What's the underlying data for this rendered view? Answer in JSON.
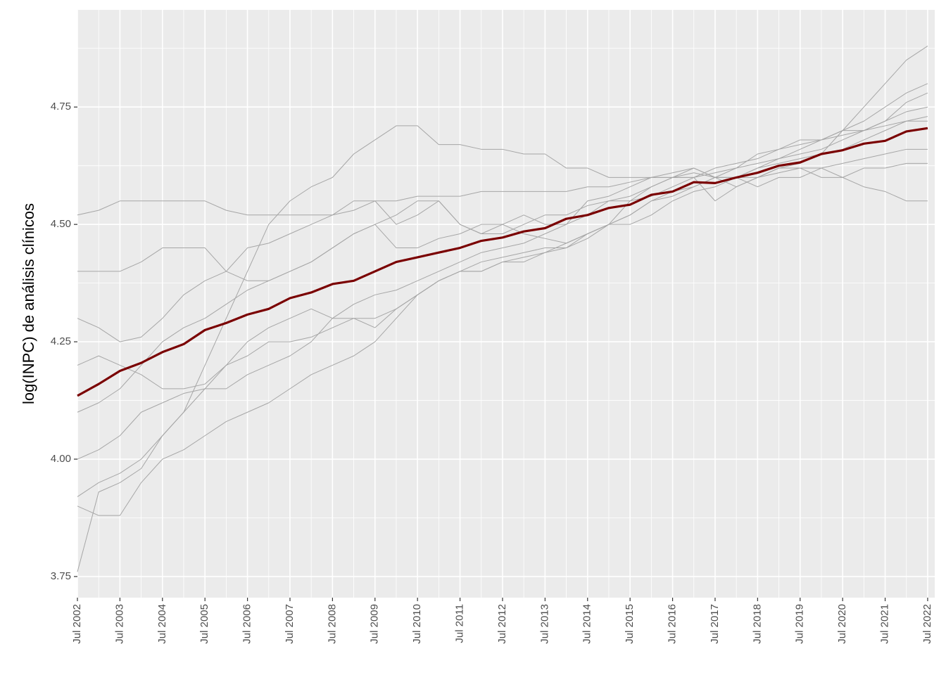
{
  "chart_data": {
    "type": "line",
    "y_label": "log(INPC) de análisis clínicos",
    "x": [
      "2002-07",
      "2003-01",
      "2003-07",
      "2004-01",
      "2004-07",
      "2005-01",
      "2005-07",
      "2006-01",
      "2006-07",
      "2007-01",
      "2007-07",
      "2008-01",
      "2008-07",
      "2009-01",
      "2009-07",
      "2010-01",
      "2010-07",
      "2011-01",
      "2011-07",
      "2012-01",
      "2012-07",
      "2013-01",
      "2013-07",
      "2014-01",
      "2014-07",
      "2015-01",
      "2015-07",
      "2016-01",
      "2016-07",
      "2017-01",
      "2017-07",
      "2018-01",
      "2018-07",
      "2019-01",
      "2019-07",
      "2020-01",
      "2020-07",
      "2021-01",
      "2021-07",
      "2022-01",
      "2022-07"
    ],
    "series": [
      {
        "color": "#a6a6a6",
        "line_width": 1,
        "values": [
          4.52,
          4.53,
          4.55,
          4.55,
          4.55,
          4.55,
          4.55,
          4.53,
          4.52,
          4.52,
          4.52,
          4.52,
          4.52,
          4.53,
          4.55,
          4.55,
          4.56,
          4.56,
          4.56,
          4.57,
          4.57,
          4.57,
          4.57,
          4.57,
          4.58,
          4.58,
          4.59,
          4.6,
          4.6,
          4.61,
          4.6,
          4.6,
          4.62,
          4.63,
          4.64,
          4.65,
          4.66,
          4.68,
          4.7,
          4.72,
          4.73
        ]
      },
      {
        "color": "#a6a6a6",
        "line_width": 1,
        "values": [
          3.76,
          3.93,
          3.95,
          3.98,
          4.05,
          4.1,
          4.15,
          4.15,
          4.18,
          4.2,
          4.22,
          4.25,
          4.3,
          4.33,
          4.35,
          4.36,
          4.38,
          4.4,
          4.42,
          4.44,
          4.45,
          4.46,
          4.48,
          4.5,
          4.52,
          4.55,
          4.55,
          4.56,
          4.58,
          4.6,
          4.55,
          4.58,
          4.6,
          4.62,
          4.63,
          4.65,
          4.7,
          4.75,
          4.8,
          4.85,
          4.88
        ]
      },
      {
        "color": "#a6a6a6",
        "line_width": 1,
        "values": [
          3.92,
          3.95,
          3.97,
          4.0,
          4.05,
          4.1,
          4.2,
          4.3,
          4.4,
          4.5,
          4.55,
          4.58,
          4.6,
          4.65,
          4.68,
          4.71,
          4.71,
          4.67,
          4.67,
          4.66,
          4.66,
          4.65,
          4.65,
          4.62,
          4.62,
          4.6,
          4.6,
          4.6,
          4.61,
          4.62,
          4.6,
          4.62,
          4.63,
          4.64,
          4.66,
          4.68,
          4.7,
          4.72,
          4.75,
          4.78,
          4.8
        ]
      },
      {
        "color": "#a6a6a6",
        "line_width": 1,
        "values": [
          4.3,
          4.28,
          4.25,
          4.26,
          4.3,
          4.35,
          4.38,
          4.4,
          4.45,
          4.46,
          4.48,
          4.5,
          4.52,
          4.55,
          4.55,
          4.5,
          4.52,
          4.55,
          4.5,
          4.48,
          4.5,
          4.52,
          4.5,
          4.5,
          4.55,
          4.56,
          4.58,
          4.6,
          4.6,
          4.62,
          4.6,
          4.58,
          4.6,
          4.62,
          4.62,
          4.6,
          4.6,
          4.62,
          4.62,
          4.63,
          4.63
        ]
      },
      {
        "color": "#a6a6a6",
        "line_width": 1,
        "values": [
          4.0,
          4.02,
          4.05,
          4.1,
          4.12,
          4.14,
          4.15,
          4.2,
          4.25,
          4.28,
          4.3,
          4.32,
          4.3,
          4.3,
          4.28,
          4.32,
          4.35,
          4.38,
          4.4,
          4.42,
          4.43,
          4.44,
          4.45,
          4.45,
          4.47,
          4.5,
          4.52,
          4.55,
          4.57,
          4.58,
          4.6,
          4.6,
          4.62,
          4.64,
          4.65,
          4.66,
          4.68,
          4.7,
          4.72,
          4.76,
          4.78
        ]
      },
      {
        "color": "#a6a6a6",
        "line_width": 1,
        "values": [
          4.2,
          4.22,
          4.2,
          4.18,
          4.15,
          4.15,
          4.16,
          4.2,
          4.22,
          4.25,
          4.25,
          4.26,
          4.28,
          4.3,
          4.3,
          4.32,
          4.35,
          4.38,
          4.4,
          4.4,
          4.42,
          4.43,
          4.44,
          4.45,
          4.48,
          4.5,
          4.52,
          4.55,
          4.56,
          4.58,
          4.6,
          4.6,
          4.58,
          4.6,
          4.6,
          4.62,
          4.6,
          4.58,
          4.57,
          4.55,
          4.55
        ]
      },
      {
        "color": "#a6a6a6",
        "line_width": 1,
        "values": [
          4.4,
          4.4,
          4.4,
          4.42,
          4.45,
          4.45,
          4.45,
          4.4,
          4.38,
          4.38,
          4.4,
          4.42,
          4.45,
          4.48,
          4.5,
          4.45,
          4.45,
          4.47,
          4.48,
          4.5,
          4.5,
          4.48,
          4.47,
          4.46,
          4.48,
          4.5,
          4.55,
          4.58,
          4.6,
          4.6,
          4.62,
          4.63,
          4.64,
          4.66,
          4.67,
          4.68,
          4.69,
          4.7,
          4.71,
          4.72,
          4.72
        ]
      },
      {
        "color": "#a6a6a6",
        "line_width": 1,
        "values": [
          3.9,
          3.88,
          3.88,
          3.95,
          4.0,
          4.02,
          4.05,
          4.08,
          4.1,
          4.12,
          4.15,
          4.18,
          4.2,
          4.22,
          4.25,
          4.3,
          4.35,
          4.38,
          4.4,
          4.4,
          4.42,
          4.42,
          4.44,
          4.46,
          4.48,
          4.5,
          4.5,
          4.52,
          4.55,
          4.57,
          4.58,
          4.6,
          4.6,
          4.61,
          4.62,
          4.62,
          4.63,
          4.64,
          4.65,
          4.66,
          4.66
        ]
      },
      {
        "color": "#a6a6a6",
        "line_width": 1,
        "values": [
          4.1,
          4.12,
          4.15,
          4.2,
          4.25,
          4.28,
          4.3,
          4.33,
          4.36,
          4.38,
          4.4,
          4.42,
          4.45,
          4.48,
          4.5,
          4.52,
          4.55,
          4.55,
          4.5,
          4.48,
          4.48,
          4.5,
          4.52,
          4.52,
          4.54,
          4.55,
          4.56,
          4.58,
          4.6,
          4.6,
          4.61,
          4.62,
          4.65,
          4.66,
          4.68,
          4.68,
          4.7,
          4.7,
          4.72,
          4.74,
          4.75
        ]
      },
      {
        "color": "#7a0000",
        "line_width": 3.2,
        "values": [
          4.135,
          4.16,
          4.188,
          4.205,
          4.228,
          4.245,
          4.275,
          4.29,
          4.308,
          4.32,
          4.343,
          4.355,
          4.373,
          4.38,
          4.4,
          4.42,
          4.43,
          4.44,
          4.45,
          4.465,
          4.472,
          4.485,
          4.492,
          4.512,
          4.52,
          4.535,
          4.542,
          4.563,
          4.57,
          4.59,
          4.588,
          4.6,
          4.61,
          4.625,
          4.632,
          4.65,
          4.658,
          4.672,
          4.678,
          4.698,
          4.705
        ]
      }
    ],
    "xlim": [
      "2002-07",
      "2022-09"
    ],
    "xticks": [
      {
        "value": "2002-07",
        "label": "Jul 2002"
      },
      {
        "value": "2003-07",
        "label": "Jul 2003"
      },
      {
        "value": "2004-07",
        "label": "Jul 2004"
      },
      {
        "value": "2005-07",
        "label": "Jul 2005"
      },
      {
        "value": "2006-07",
        "label": "Jul 2006"
      },
      {
        "value": "2007-07",
        "label": "Jul 2007"
      },
      {
        "value": "2008-07",
        "label": "Jul 2008"
      },
      {
        "value": "2009-07",
        "label": "Jul 2009"
      },
      {
        "value": "2010-07",
        "label": "Jul 2010"
      },
      {
        "value": "2011-07",
        "label": "Jul 2011"
      },
      {
        "value": "2012-07",
        "label": "Jul 2012"
      },
      {
        "value": "2013-07",
        "label": "Jul 2013"
      },
      {
        "value": "2014-07",
        "label": "Jul 2014"
      },
      {
        "value": "2015-07",
        "label": "Jul 2015"
      },
      {
        "value": "2016-07",
        "label": "Jul 2016"
      },
      {
        "value": "2017-07",
        "label": "Jul 2017"
      },
      {
        "value": "2018-07",
        "label": "Jul 2018"
      },
      {
        "value": "2019-07",
        "label": "Jul 2019"
      },
      {
        "value": "2020-07",
        "label": "Jul 2020"
      },
      {
        "value": "2021-07",
        "label": "Jul 2021"
      },
      {
        "value": "2022-07",
        "label": "Jul 2022"
      }
    ],
    "ylim": [
      3.705,
      4.957
    ],
    "yticks": [
      3.75,
      {
        "value": 4.0,
        "label": "4.00"
      },
      4.25,
      {
        "value": 4.5,
        "label": "4.50"
      },
      4.75
    ],
    "grid": true,
    "minor_grid": true
  }
}
